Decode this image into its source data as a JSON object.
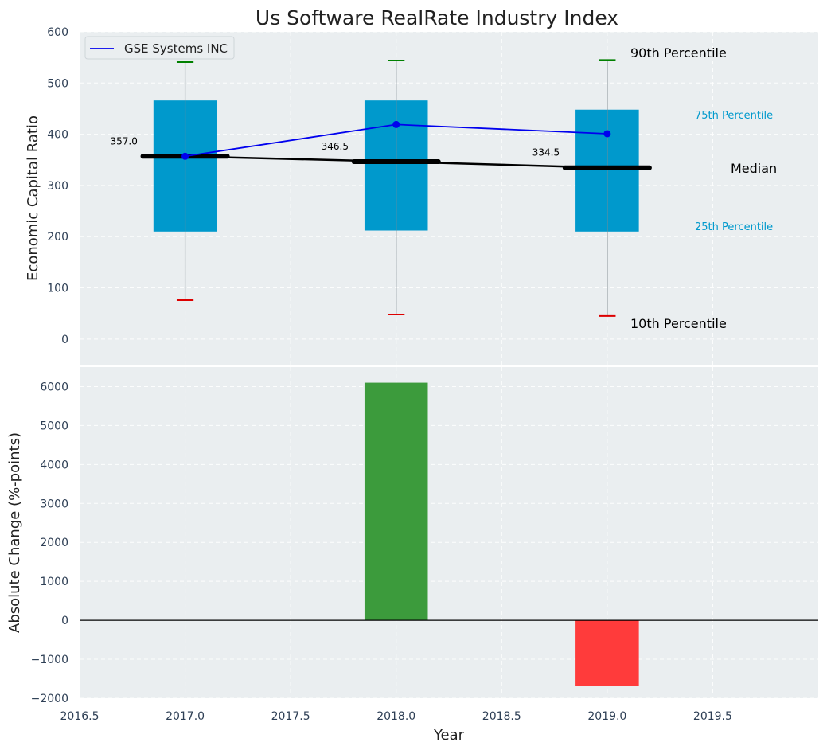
{
  "title": "Us Software RealRate Industry Index",
  "colors": {
    "panel_bg": "#eaeef0",
    "box": "#0099cc",
    "company_line": "#0000ee",
    "median_line": "#000000",
    "p90_cap": "#008000",
    "p10_cap": "#dd0000",
    "positive_bar": "#3c9b3c",
    "negative_bar": "#ff3b3b",
    "annotation_blue": "#0099cc"
  },
  "legend": {
    "label": "GSE Systems INC",
    "placement": "top-left"
  },
  "annotations": {
    "p90": "90th Percentile",
    "p75": "75th Percentile",
    "median": "Median",
    "p25": "25th Percentile",
    "p10": "10th Percentile"
  },
  "chart_data": [
    {
      "type": "box-percentile",
      "ylabel": "Economic Capital Ratio",
      "xlim": [
        2016.5,
        2020.0
      ],
      "ylim": [
        -50,
        600
      ],
      "yticks": [
        "0",
        "100",
        "200",
        "300",
        "400",
        "500",
        "600"
      ],
      "years": [
        2017,
        2018,
        2019
      ],
      "p10": [
        76,
        48,
        45
      ],
      "p25": [
        210,
        212,
        210
      ],
      "median": [
        357.0,
        346.5,
        334.5
      ],
      "median_labels": [
        "357.0",
        "346.5",
        "334.5"
      ],
      "p75": [
        466,
        466,
        448
      ],
      "p90": [
        541,
        544,
        545
      ],
      "company": {
        "name": "GSE Systems INC",
        "values": [
          357,
          419,
          401
        ]
      },
      "grid": true
    },
    {
      "type": "bar",
      "xlabel": "Year",
      "ylabel": "Absolute Change (%-points)",
      "xlim": [
        2016.5,
        2020.0
      ],
      "ylim": [
        -2000,
        6500
      ],
      "xticks": [
        "2016.5",
        "2017.0",
        "2017.5",
        "2018.0",
        "2018.5",
        "2019.0",
        "2019.5"
      ],
      "yticks": [
        "−2000",
        "−1000",
        "0",
        "1000",
        "2000",
        "3000",
        "4000",
        "5000",
        "6000"
      ],
      "x": [
        2018,
        2019
      ],
      "values": [
        6100,
        -1680
      ],
      "grid": true
    }
  ]
}
